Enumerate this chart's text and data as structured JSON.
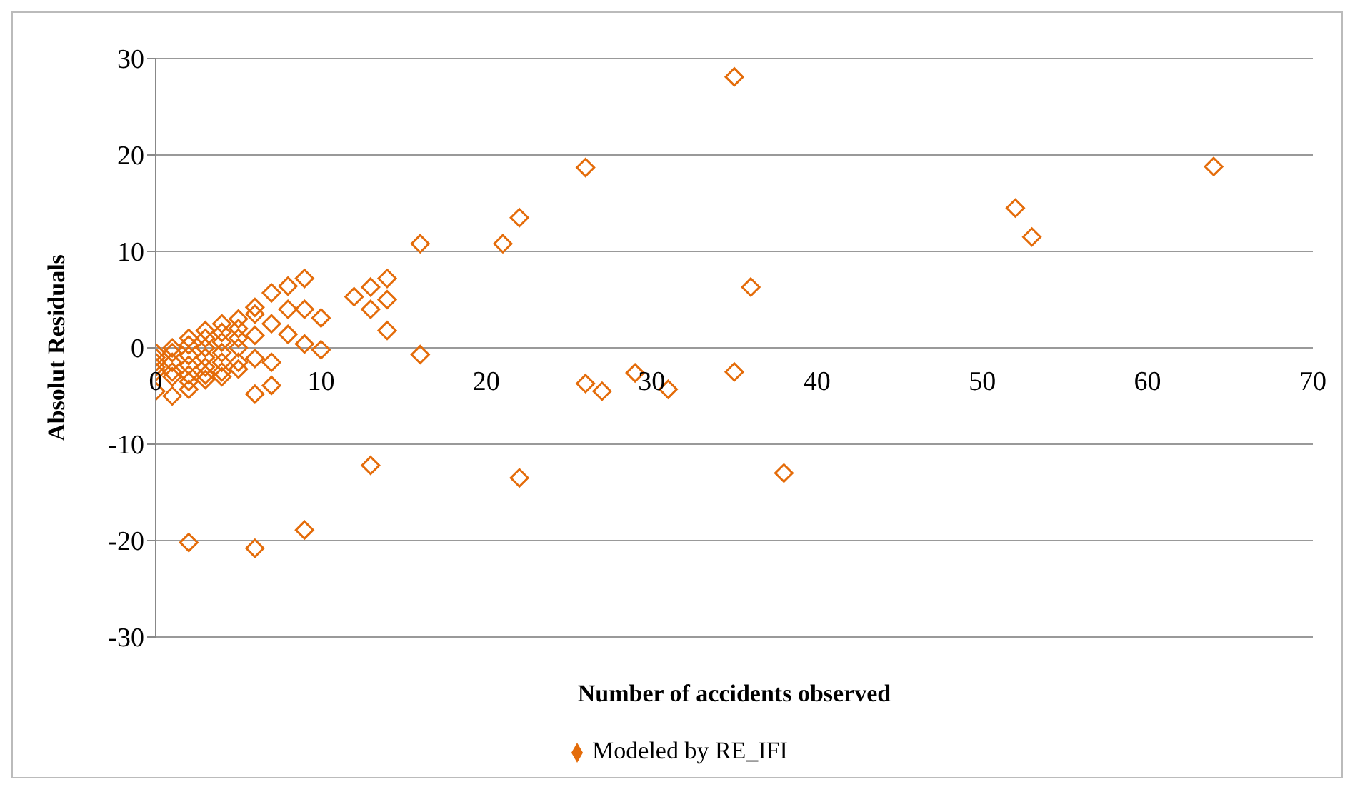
{
  "chart_data": {
    "type": "scatter",
    "xlabel": "Number of accidents observed",
    "ylabel": "Absolut Residuals",
    "xlim": [
      0,
      70
    ],
    "xticks": [
      0,
      10,
      20,
      30,
      40,
      50,
      60,
      70
    ],
    "ylim": [
      -30,
      30
    ],
    "yticks": [
      -30,
      -20,
      -10,
      0,
      10,
      20,
      30
    ],
    "grid": "y",
    "legend": "bottom",
    "marker": "diamond",
    "series": [
      {
        "name": "Modeled by RE_IFI",
        "color": "#e46c0a",
        "x": [
          0,
          0,
          0,
          0,
          0,
          0,
          1,
          1,
          1,
          1,
          1,
          1,
          2,
          2,
          2,
          2,
          2,
          2,
          2,
          3,
          3,
          3,
          3,
          3,
          3,
          3,
          4,
          4,
          4,
          4,
          4,
          4,
          4,
          5,
          5,
          5,
          5,
          5,
          5,
          6,
          6,
          6,
          6,
          6,
          7,
          7,
          7,
          7,
          8,
          8,
          8,
          9,
          9,
          9,
          10,
          10,
          2,
          6,
          9,
          12,
          13,
          13,
          13,
          14,
          14,
          14,
          16,
          16,
          21,
          22,
          22,
          26,
          26,
          27,
          29,
          31,
          35,
          35,
          36,
          38,
          52,
          53,
          64
        ],
        "values": [
          -0.5,
          -1,
          -1.5,
          -2,
          -2.5,
          -4.5,
          0,
          -0.5,
          -1.5,
          -2.5,
          -3,
          -5,
          1,
          0.3,
          -0.8,
          -1.8,
          -2.8,
          -3.5,
          -4.3,
          1.8,
          1,
          0,
          -1,
          -2,
          -2.8,
          -3.3,
          2.5,
          1.6,
          0.6,
          -0.5,
          -1.5,
          -2.5,
          -3,
          3,
          2,
          1,
          0,
          -1.5,
          -2.2,
          4.2,
          3.5,
          1.3,
          -1.1,
          -4.8,
          5.7,
          2.5,
          -1.5,
          -3.9,
          6.4,
          4,
          1.4,
          7.2,
          4,
          0.4,
          3.1,
          -0.2,
          -20.2,
          -20.8,
          -18.9,
          5.3,
          6.3,
          4,
          -12.2,
          7.2,
          5,
          1.8,
          10.8,
          -0.7,
          10.8,
          13.5,
          -13.5,
          18.7,
          -3.7,
          -4.5,
          -2.6,
          -4.3,
          28.1,
          -2.5,
          6.3,
          -13,
          14.5,
          11.5,
          18.8
        ]
      }
    ]
  }
}
